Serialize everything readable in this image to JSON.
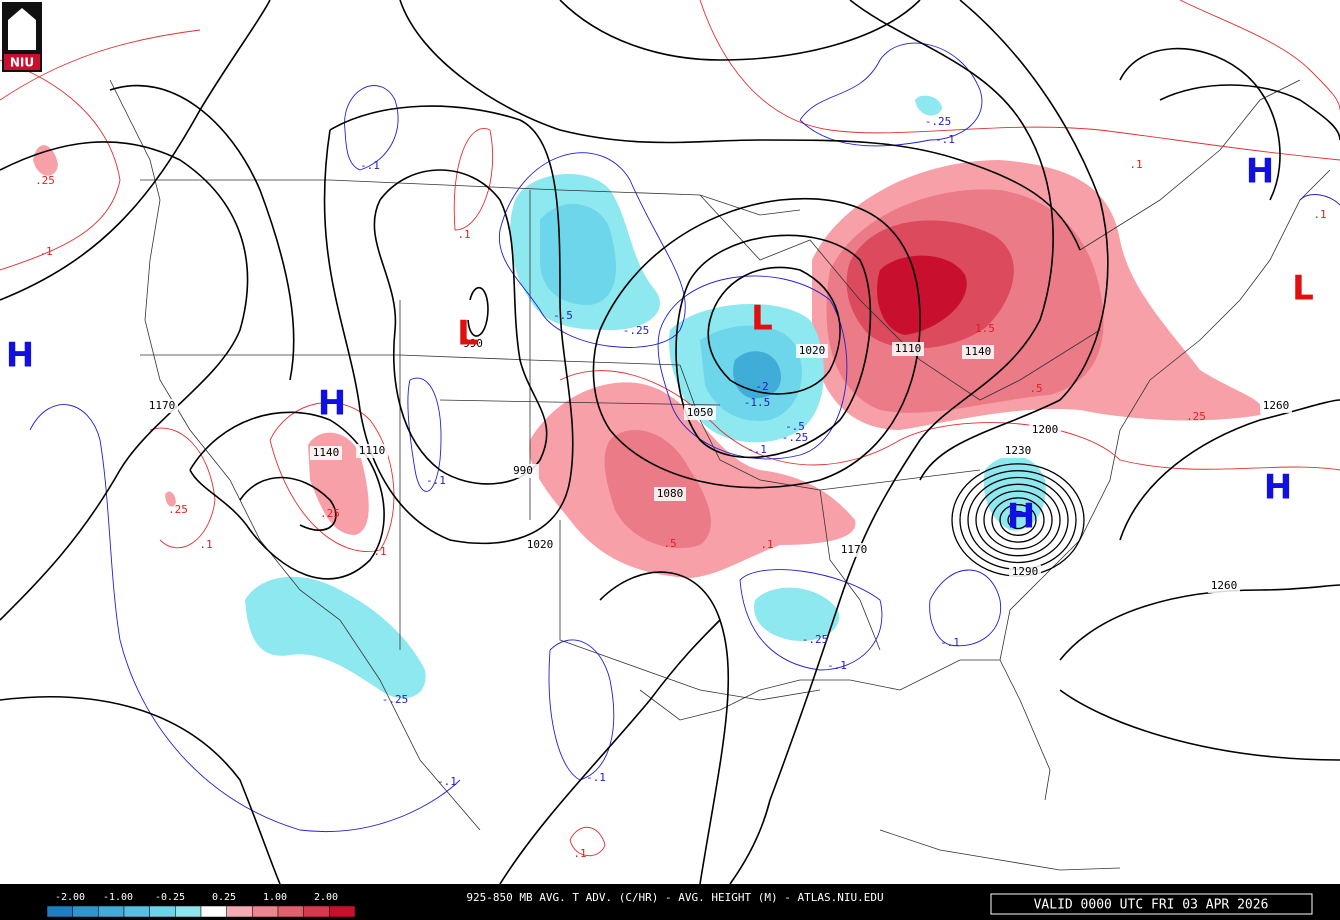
{
  "logo": "NIU",
  "centers": [
    {
      "label": "H",
      "color": "#1010e0"
    },
    {
      "label": "H",
      "color": "#1010e0"
    },
    {
      "label": "L",
      "color": "#e01010"
    },
    {
      "label": "L",
      "color": "#e01010"
    },
    {
      "label": "H",
      "color": "#1010e0"
    },
    {
      "label": "L",
      "color": "#e01010"
    },
    {
      "label": "H",
      "color": "#1010e0"
    },
    {
      "label": "H",
      "color": "#1010e0"
    }
  ],
  "height_labels": [
    "1170",
    "1140",
    "1110",
    "990",
    "990",
    "1020",
    "1050",
    "1080",
    "1020",
    "1110",
    "1140",
    "1170",
    "1200",
    "1230",
    "1260",
    "1260",
    "1290"
  ],
  "advection_labels": [
    ".25",
    ".1",
    "-.1",
    ".1",
    "-.5",
    "-.25",
    "-.25",
    "-.1",
    ".1",
    "-2",
    "-1.5",
    "-.5",
    "-.25",
    "-.1",
    ".5",
    ".25",
    "1.5",
    ".5",
    ".1",
    ".25",
    ".25",
    ".1",
    ".1",
    "-.1",
    "-.25",
    "-.1",
    "-.1",
    "-.25",
    "-.1",
    "-.1",
    ".1",
    ".1"
  ],
  "colorbar": {
    "labels": [
      "-2.00",
      "-1.00",
      "-0.25",
      "0.25",
      "1.00",
      "2.00"
    ],
    "colors": [
      "#1b80c0",
      "#2d97cc",
      "#40acd8",
      "#55c0e2",
      "#6dd3ea",
      "#8fe4f0",
      "#ffffff",
      "#f6aab3",
      "#ee8490",
      "#e45e6e",
      "#d8394e",
      "#c8102e"
    ]
  },
  "footer": {
    "title": "925-850 MB AVG. T ADV. (C/HR) - AVG. HEIGHT (M) - ATLAS.NIU.EDU",
    "valid": "VALID 0000 UTC FRI 03 APR 2026"
  }
}
